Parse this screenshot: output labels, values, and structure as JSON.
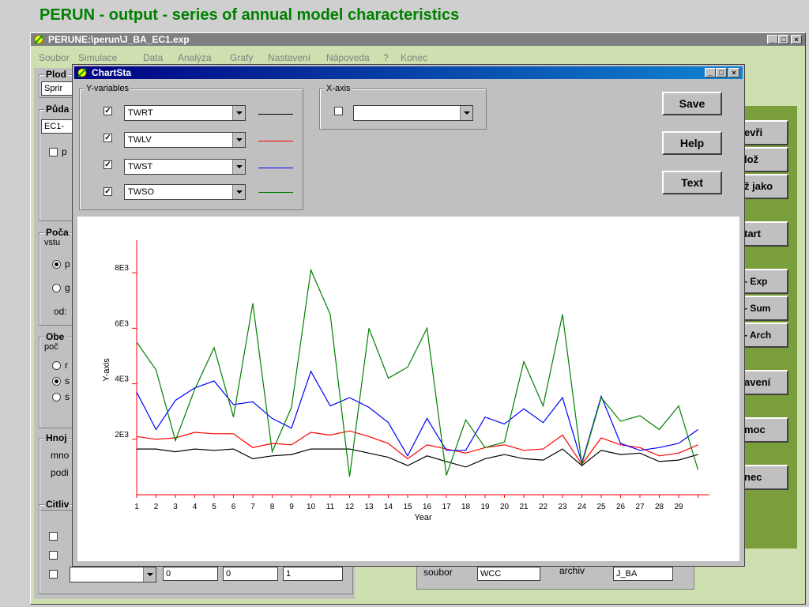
{
  "slide_title": "PERUN - output - series of annual model characteristics",
  "main_window": {
    "title": "PERUNE:\\perun\\J_BA_EC1.exp",
    "menu": [
      "Soubor",
      "Simulace",
      "Data",
      "Analýza",
      "Grafy",
      "Nastavení",
      "Nápoveda",
      "?",
      "Konec"
    ],
    "left_groups": {
      "plod": "Plod",
      "plod_value": "Sprir",
      "puda": "Půda",
      "puda_value": "EC1-",
      "puda_check": "p",
      "poca": "Poča",
      "poca_sub": "vstu",
      "poca_r1": "p",
      "poca_r2": "g",
      "poca_od": "od:",
      "obec": "Obe",
      "obec_sub": "poč",
      "obec_r1": "r",
      "obec_r2": "s",
      "obec_r3": "s",
      "hnoj": "Hnoj",
      "hnoj_l1": "mno",
      "hnoj_l2": "podi",
      "citl": "Citliv"
    },
    "bottom_fields": [
      "0",
      "0",
      "1"
    ],
    "bottom_right": {
      "soubor_label": "soubor",
      "soubor_value": "WCC",
      "archiv_label": "archiv",
      "archiv_value": "J_BA"
    },
    "right_buttons": [
      "evři",
      "lož",
      "ž jako",
      "tart",
      " - Exp",
      "- Sum",
      " - Arch",
      "avení",
      "moc",
      "nec"
    ]
  },
  "chartsta": {
    "title": "ChartSta",
    "yvars_label": "Y-variables",
    "xaxis_label": "X-axis",
    "save": "Save",
    "help": "Help",
    "text": "Text",
    "check_mark": "✓"
  },
  "colors": {
    "TWRT": "#000000",
    "TWLV": "#ff0000",
    "TWST": "#0000ff",
    "TWSO": "#008000",
    "axis": "#ff0000",
    "title_green": "#008000"
  },
  "chart_data": {
    "type": "line",
    "xlabel": "Year",
    "ylabel": "Y-axis",
    "x": [
      1,
      2,
      3,
      4,
      5,
      6,
      7,
      8,
      9,
      10,
      11,
      12,
      13,
      14,
      15,
      16,
      17,
      18,
      19,
      20,
      21,
      22,
      23,
      24,
      25,
      26,
      27,
      28,
      29,
      30
    ],
    "x_tick_labels": [
      "1",
      "2",
      "3",
      "4",
      "5",
      "6",
      "7",
      "8",
      "9",
      "10",
      "11",
      "12",
      "13",
      "14",
      "15",
      "16",
      "17",
      "18",
      "19",
      "20",
      "21",
      "22",
      "23",
      "24",
      "25",
      "26",
      "27",
      "28",
      "29"
    ],
    "y_ticks": [
      2000,
      4000,
      6000,
      8000
    ],
    "y_tick_labels": [
      "2E3",
      "4E3",
      "6E3",
      "8E3"
    ],
    "ylim": [
      0,
      9000
    ],
    "series": [
      {
        "name": "TWRT",
        "values": [
          1650,
          1650,
          1550,
          1650,
          1600,
          1650,
          1300,
          1400,
          1450,
          1650,
          1650,
          1650,
          1500,
          1350,
          1050,
          1400,
          1200,
          1000,
          1300,
          1450,
          1300,
          1250,
          1650,
          1050,
          1600,
          1450,
          1500,
          1200,
          1250,
          1450
        ]
      },
      {
        "name": "TWLV",
        "values": [
          2100,
          2000,
          2050,
          2250,
          2200,
          2200,
          1700,
          1850,
          1800,
          2250,
          2150,
          2300,
          2100,
          1850,
          1300,
          1800,
          1650,
          1500,
          1700,
          1800,
          1600,
          1650,
          2150,
          1100,
          2050,
          1800,
          1700,
          1400,
          1500,
          1800
        ]
      },
      {
        "name": "TWST",
        "values": [
          3700,
          2350,
          3400,
          3850,
          4100,
          3250,
          3350,
          2750,
          2400,
          4450,
          3200,
          3500,
          3150,
          2600,
          1400,
          2750,
          1600,
          1600,
          2800,
          2550,
          3100,
          2600,
          3500,
          1150,
          3550,
          1850,
          1600,
          1700,
          1850,
          2350
        ]
      },
      {
        "name": "TWSO",
        "values": [
          5500,
          4500,
          1950,
          3800,
          5300,
          2800,
          6900,
          1550,
          3150,
          8100,
          6500,
          650,
          6000,
          4200,
          4600,
          6000,
          700,
          2700,
          1700,
          1900,
          4800,
          3200,
          6500,
          1100,
          3500,
          2650,
          2850,
          2350,
          3200,
          900
        ]
      }
    ]
  }
}
